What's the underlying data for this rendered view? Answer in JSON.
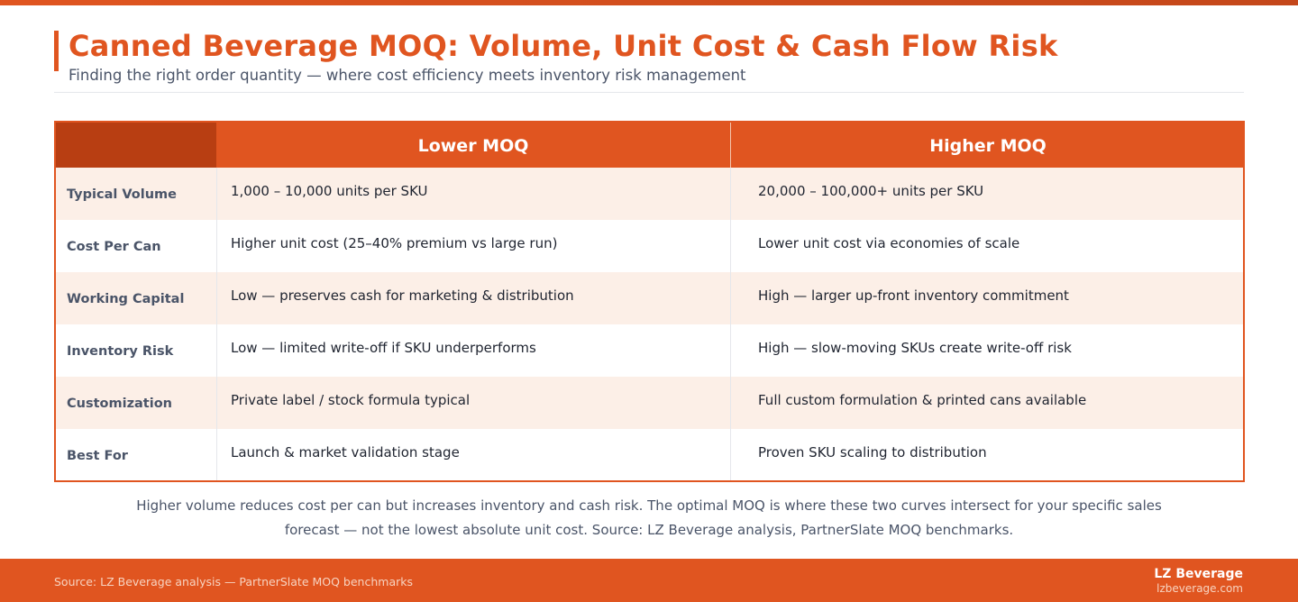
{
  "header": {
    "title": "Canned Beverage MOQ: Volume, Unit Cost & Cash Flow Risk",
    "subtitle": "Finding the right order quantity — where cost efficiency meets inventory risk management"
  },
  "table": {
    "columns": [
      "",
      "Lower MOQ",
      "Higher MOQ"
    ],
    "rows": [
      {
        "label": "Typical Volume",
        "lower": "1,000 – 10,000 units per SKU",
        "higher": "20,000 – 100,000+ units per SKU"
      },
      {
        "label": "Cost Per Can",
        "lower": "Higher unit cost (25–40% premium vs large run)",
        "higher": "Lower unit cost via economies of scale"
      },
      {
        "label": "Working Capital",
        "lower": "Low — preserves cash for marketing & distribution",
        "higher": "High — larger up-front inventory commitment"
      },
      {
        "label": "Inventory Risk",
        "lower": "Low — limited write-off if SKU underperforms",
        "higher": "High — slow-moving SKUs create write-off risk"
      },
      {
        "label": "Customization",
        "lower": "Private label / stock formula typical",
        "higher": "Full custom formulation & printed cans available"
      },
      {
        "label": "Best For",
        "lower": "Launch & market validation stage",
        "higher": "Proven SKU scaling to distribution"
      }
    ]
  },
  "note": {
    "line1": "Higher volume reduces cost per can but increases inventory and cash risk. The optimal MOQ is where these two curves intersect for your specific sales",
    "line2": "forecast — not the lowest absolute unit cost. Source: LZ Beverage analysis, PartnerSlate MOQ benchmarks."
  },
  "footer": {
    "source": "Source: LZ Beverage analysis — PartnerSlate MOQ benchmarks",
    "brand": "LZ Beverage",
    "url": "lzbeverage.com"
  },
  "colors": {
    "accent": "#e05520",
    "accent_dark": "#b83e12",
    "row_alt": "#fcefe7",
    "muted_text": "#4a5468"
  }
}
